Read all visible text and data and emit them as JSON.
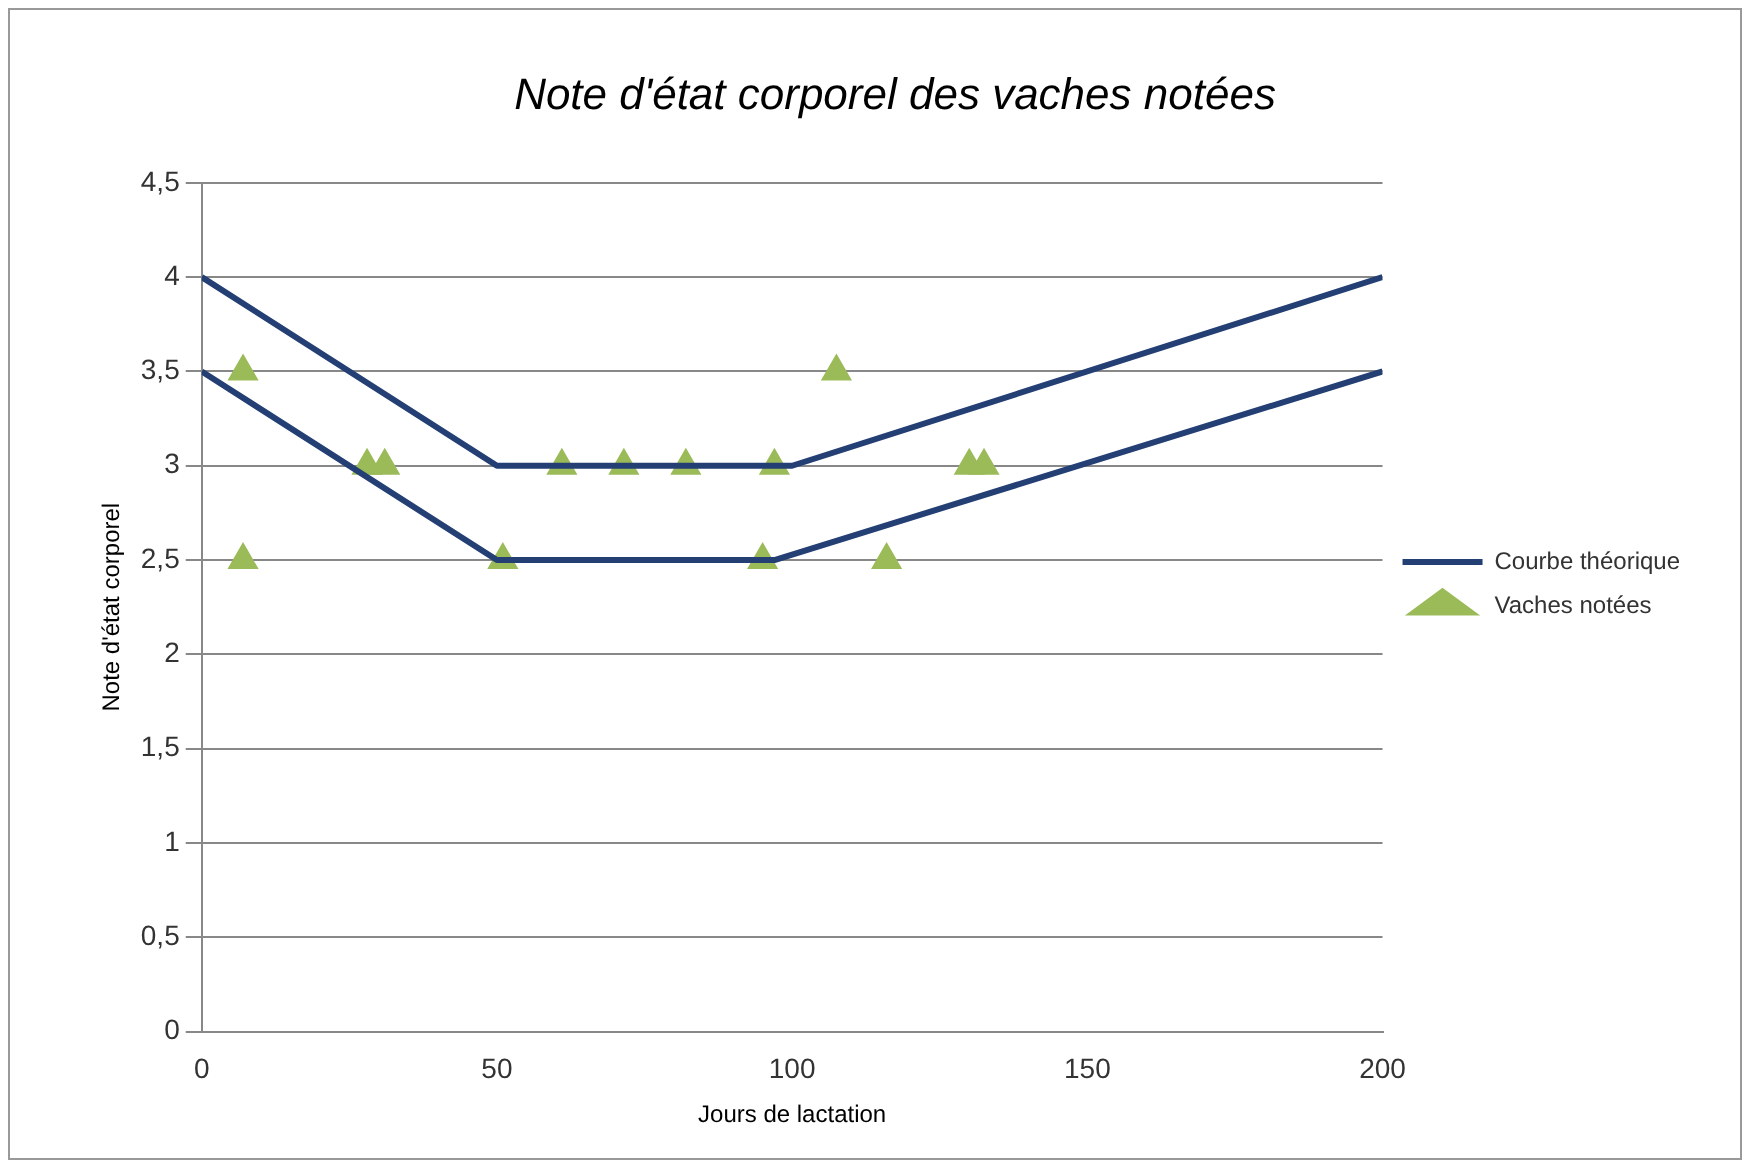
{
  "chart_data": {
    "type": "scatter",
    "title": "Note d'état corporel des vaches notées",
    "xlabel": "Jours de lactation",
    "ylabel": "Note d'état corporel",
    "xlim": [
      0,
      200
    ],
    "xticks": [
      0,
      50,
      100,
      150,
      200
    ],
    "ylim": [
      0,
      4.5
    ],
    "yticks": [
      {
        "value": 0,
        "label": "0"
      },
      {
        "value": 0.5,
        "label": "0,5"
      },
      {
        "value": 1,
        "label": "1"
      },
      {
        "value": 1.5,
        "label": "1,5"
      },
      {
        "value": 2,
        "label": "2"
      },
      {
        "value": 2.5,
        "label": "2,5"
      },
      {
        "value": 3,
        "label": "3"
      },
      {
        "value": 3.5,
        "label": "3,5"
      },
      {
        "value": 4,
        "label": "4"
      },
      {
        "value": 4.5,
        "label": "4,5"
      }
    ],
    "grid": "y",
    "legend": "right",
    "series": [
      {
        "name": "Courbe théorique",
        "type": "line",
        "color": "#243f74",
        "marker": "none",
        "x": [
          0,
          50,
          100,
          200,
          null,
          0,
          50,
          97,
          200
        ],
        "values": [
          4,
          3,
          3,
          4,
          null,
          3.5,
          2.5,
          2.5,
          3.5
        ]
      },
      {
        "name": "Vaches notées",
        "color": "#9bbb59",
        "marker": "triangle",
        "x": [
          7,
          7,
          28,
          31,
          51,
          61,
          71.5,
          82,
          97,
          95,
          107.5,
          116,
          130,
          132.5
        ],
        "values": [
          3.5,
          2.5,
          3,
          3,
          2.5,
          3,
          3,
          3,
          3,
          2.5,
          3.5,
          2.5,
          3,
          3
        ]
      }
    ]
  }
}
